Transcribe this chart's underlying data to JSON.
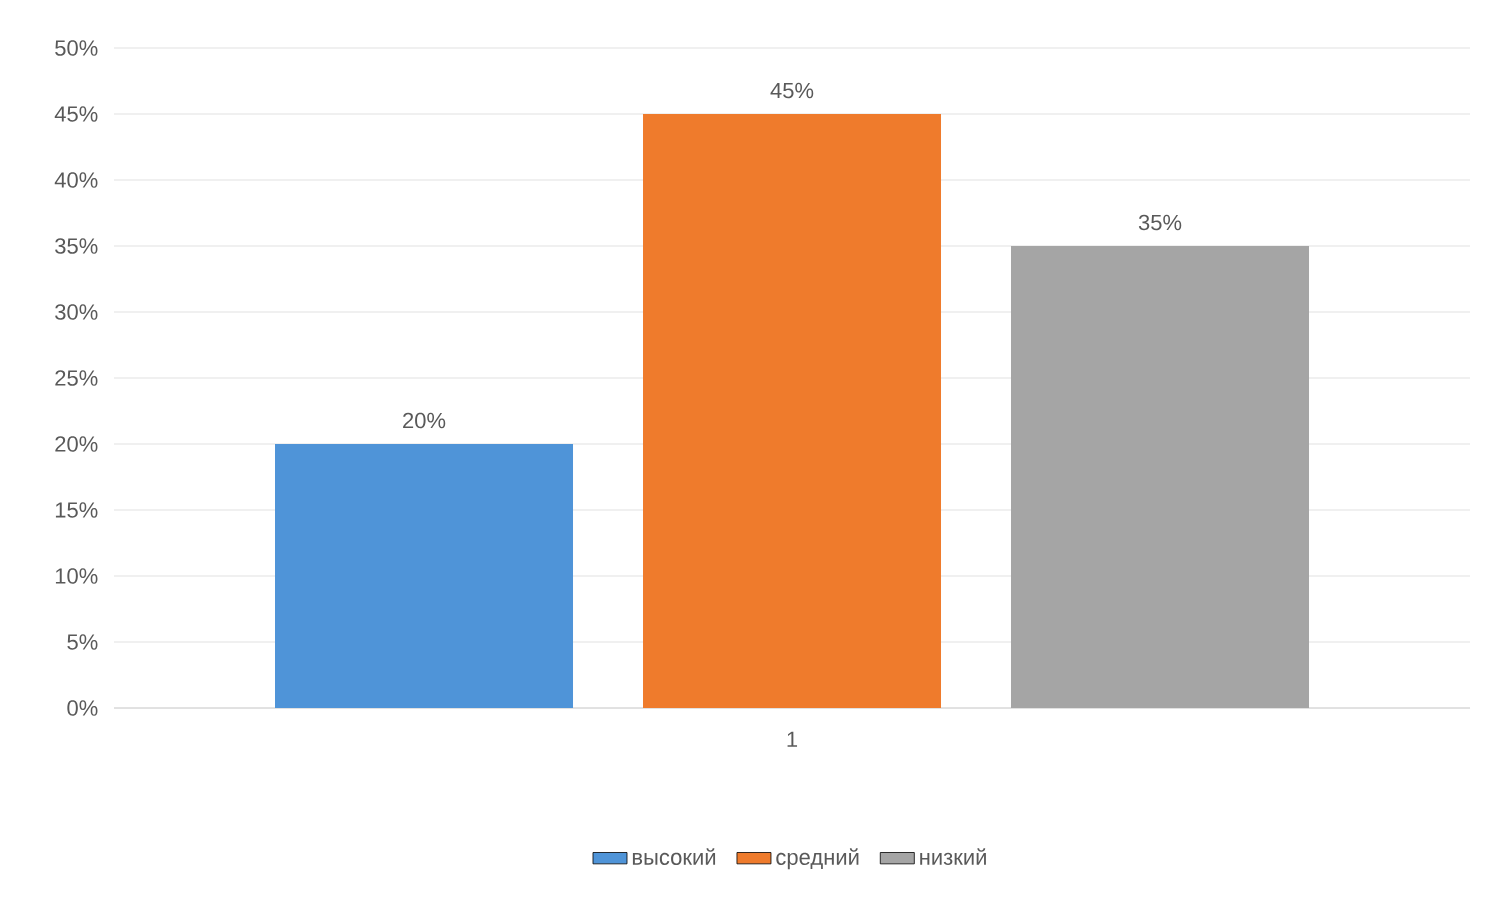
{
  "chart_data": {
    "type": "bar",
    "categories": [
      "1"
    ],
    "series": [
      {
        "name": "высокий",
        "color": "#4f94d8",
        "values": [
          20
        ],
        "value_labels": [
          "20%"
        ]
      },
      {
        "name": "средний",
        "color": "#ef7b2c",
        "values": [
          45
        ],
        "value_labels": [
          "45%"
        ]
      },
      {
        "name": "низкий",
        "color": "#a5a5a5",
        "values": [
          35
        ],
        "value_labels": [
          "35%"
        ]
      }
    ],
    "ylim": [
      0,
      50
    ],
    "yticks": [
      {
        "value": 0,
        "label": "0%"
      },
      {
        "value": 5,
        "label": "5%"
      },
      {
        "value": 10,
        "label": "10%"
      },
      {
        "value": 15,
        "label": "15%"
      },
      {
        "value": 20,
        "label": "20%"
      },
      {
        "value": 25,
        "label": "25%"
      },
      {
        "value": 30,
        "label": "30%"
      },
      {
        "value": 35,
        "label": "35%"
      },
      {
        "value": 40,
        "label": "40%"
      },
      {
        "value": 45,
        "label": "45%"
      },
      {
        "value": 50,
        "label": "50%"
      }
    ],
    "grid": "y",
    "legend": "bottom"
  }
}
